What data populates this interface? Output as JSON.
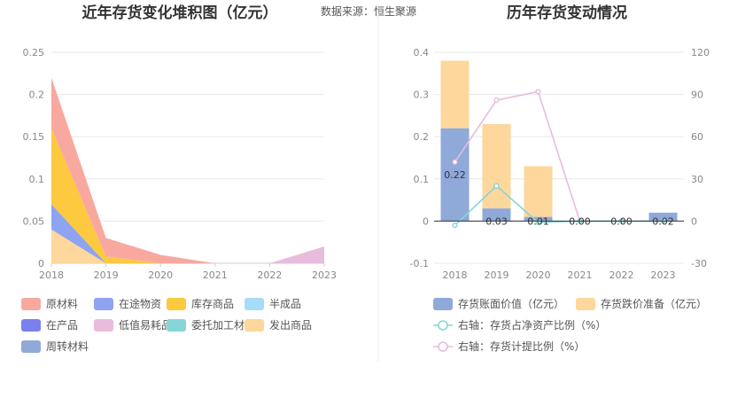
{
  "source_text": "数据来源：恒生聚源",
  "colors": {
    "原材料": "#f9a8a0",
    "在途物资": "#8ea4f2",
    "库存商品": "#fcc93f",
    "半成品": "#a6dcf8",
    "在产品": "#7a80ee",
    "低值易耗品": "#e8bcdc",
    "委托加工材料": "#86d6d8",
    "发出商品": "#fdd79b",
    "周转材料": "#8fa9d9",
    "book_value": "#8fa9d9",
    "impairment": "#fdd79b",
    "ratio_assets": "#86d6d8",
    "ratio_provision": "#e8bcdc",
    "grid": "#e8e8e8",
    "axis_text": "#888888"
  },
  "chart_data": [
    {
      "type": "area",
      "title": "近年存货变化堆积图（亿元）",
      "stacked": true,
      "x": [
        "2018",
        "2019",
        "2020",
        "2021",
        "2022",
        "2023"
      ],
      "ylim": [
        0,
        0.25
      ],
      "yticks": [
        "0",
        "0.05",
        "0.1",
        "0.15",
        "0.2",
        "0.25"
      ],
      "grid": true,
      "legend_position": "bottom",
      "series": [
        {
          "name": "发出商品",
          "values": [
            0.04,
            0,
            0,
            0,
            0,
            0
          ]
        },
        {
          "name": "在途物资",
          "values": [
            0.03,
            0,
            0,
            0,
            0,
            0
          ]
        },
        {
          "name": "库存商品",
          "values": [
            0.09,
            0.008,
            0,
            0,
            0,
            0
          ]
        },
        {
          "name": "原材料",
          "values": [
            0.06,
            0.022,
            0.01,
            0,
            0,
            0
          ]
        },
        {
          "name": "低值易耗品",
          "values": [
            0,
            0,
            0,
            0,
            0,
            0.02
          ]
        },
        {
          "name": "半成品",
          "values": [
            0,
            0,
            0,
            0,
            0,
            0
          ]
        },
        {
          "name": "在产品",
          "values": [
            0,
            0,
            0,
            0,
            0,
            0
          ]
        },
        {
          "name": "委托加工材料",
          "values": [
            0,
            0,
            0,
            0,
            0,
            0
          ]
        },
        {
          "name": "周转材料",
          "values": [
            0,
            0,
            0,
            0,
            0,
            0
          ]
        }
      ],
      "legend": [
        "原材料",
        "在途物资",
        "库存商品",
        "半成品",
        "在产品",
        "低值易耗品",
        "委托加工材料",
        "发出商品",
        "周转材料"
      ]
    },
    {
      "type": "bar",
      "title": "历年存货变动情况",
      "stacked": true,
      "categories": [
        "2018",
        "2019",
        "2020",
        "2021",
        "2022",
        "2023"
      ],
      "ylim": [
        -0.1,
        0.4
      ],
      "yticks": [
        "-0.1",
        "0",
        "0.1",
        "0.2",
        "0.3",
        "0.4"
      ],
      "y2lim": [
        -30,
        120
      ],
      "y2ticks": [
        "-30",
        "0",
        "30",
        "60",
        "90",
        "120"
      ],
      "grid": true,
      "legend_position": "bottom",
      "series": [
        {
          "name": "存货账面价值（亿元）",
          "axis": "left",
          "values": [
            0.22,
            0.03,
            0.01,
            0.0,
            0.0,
            0.02
          ],
          "labels": [
            "0.22",
            "0.03",
            "0.01",
            "0.00",
            "0.00",
            "0.02"
          ]
        },
        {
          "name": "存货跌价准备（亿元）",
          "axis": "left",
          "values": [
            0.16,
            0.2,
            0.12,
            0,
            0,
            0
          ]
        },
        {
          "name": "右轴：存货占净资产比例（%）",
          "axis": "right",
          "type": "line",
          "values": [
            -3,
            25,
            -1,
            0,
            0,
            0
          ]
        },
        {
          "name": "右轴：存货计提比例（%）",
          "axis": "right",
          "type": "line",
          "values": [
            42,
            86,
            92,
            0,
            0,
            0
          ]
        }
      ]
    }
  ]
}
